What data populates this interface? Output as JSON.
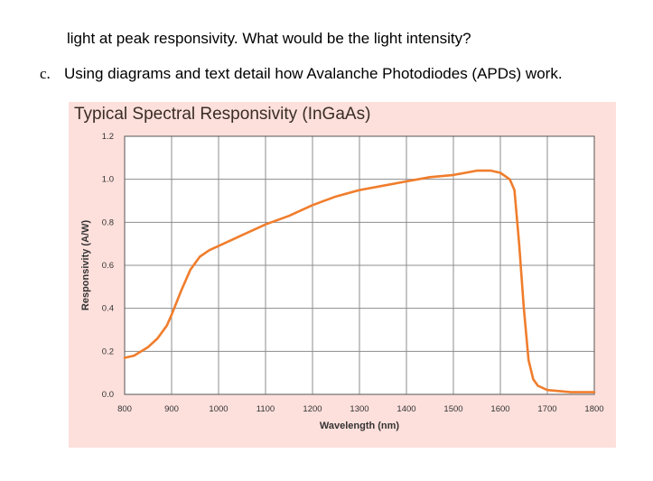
{
  "text": {
    "line1": "light at peak responsivity. What would be the light intensity?",
    "item_marker": "c.",
    "item_text": "Using diagrams and text detail how Avalanche Photodiodes (APDs) work."
  },
  "chart_data": {
    "type": "line",
    "title": "Typical Spectral Responsivity (InGaAs)",
    "xlabel": "Wavelength (nm)",
    "ylabel": "Responsivity (A/W)",
    "xlim": [
      800,
      1800
    ],
    "ylim": [
      0,
      1.2
    ],
    "x_ticks": [
      "800",
      "900",
      "1000",
      "1100",
      "1200",
      "1300",
      "1400",
      "1500",
      "1600",
      "1700",
      "1800"
    ],
    "y_ticks": [
      "0.0",
      "0.2",
      "0.4",
      "0.6",
      "0.8",
      "1.0",
      "1.2"
    ],
    "grid": true,
    "series_color": "#f07d2c",
    "series": [
      {
        "x": [
          800,
          820,
          850,
          870,
          890,
          900,
          920,
          940,
          960,
          980,
          1000,
          1050,
          1100,
          1150,
          1200,
          1250,
          1300,
          1350,
          1400,
          1450,
          1500,
          1550,
          1580,
          1600,
          1620,
          1630,
          1640,
          1650,
          1660,
          1670,
          1680,
          1700,
          1750,
          1800
        ],
        "y": [
          0.17,
          0.18,
          0.22,
          0.26,
          0.32,
          0.37,
          0.48,
          0.58,
          0.64,
          0.67,
          0.69,
          0.74,
          0.79,
          0.83,
          0.88,
          0.92,
          0.95,
          0.97,
          0.99,
          1.01,
          1.02,
          1.04,
          1.04,
          1.03,
          1.0,
          0.95,
          0.7,
          0.4,
          0.16,
          0.07,
          0.04,
          0.02,
          0.01,
          0.01
        ]
      }
    ]
  }
}
